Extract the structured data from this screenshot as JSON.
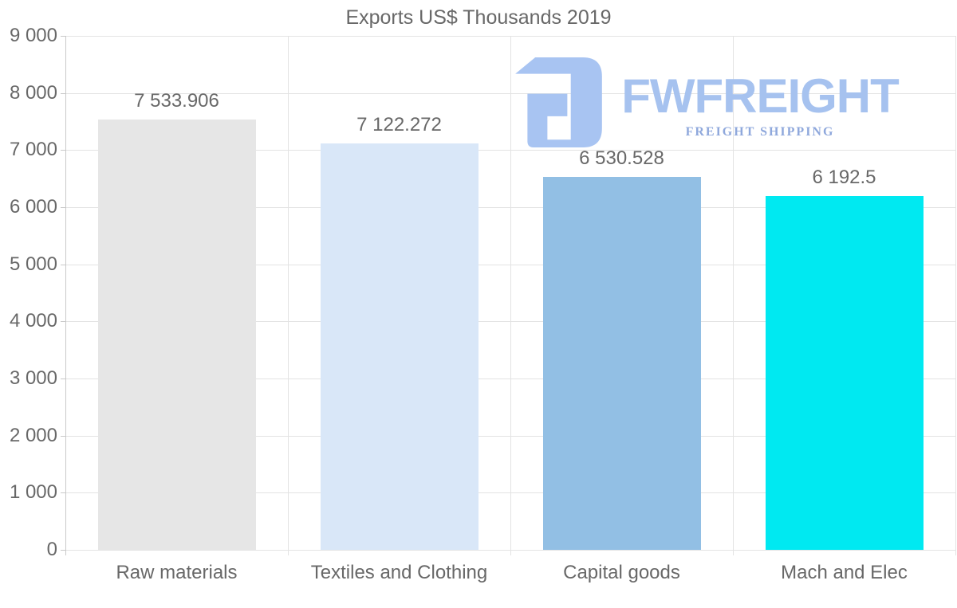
{
  "chart_data": {
    "type": "bar",
    "title": "Exports US$ Thousands 2019",
    "categories": [
      "Raw materials",
      "Textiles and Clothing",
      "Capital goods",
      "Mach and Elec"
    ],
    "values": [
      7533.906,
      7122.272,
      6530.528,
      6192.5
    ],
    "value_labels": [
      "7 533.906",
      "7 122.272",
      "6 530.528",
      "6 192.5"
    ],
    "bar_colors": [
      "#e6e6e6",
      "#d9e7f8",
      "#92bfe4",
      "#00e9f1"
    ],
    "ylim": [
      0,
      9000
    ],
    "y_tick_interval": 1000,
    "y_tick_labels": [
      "0",
      "1 000",
      "2 000",
      "3 000",
      "4 000",
      "5 000",
      "6 000",
      "7 000",
      "8 000",
      "9 000"
    ],
    "grid": true,
    "legend": false,
    "xlabel": "",
    "ylabel": ""
  },
  "watermark": {
    "brand": "FWFREIGHT",
    "tagline": "FREIGHT SHIPPING",
    "brand_color": "#a6c2ef",
    "tagline_color": "#8fa8dc",
    "mark_color": "#a8c4f2"
  },
  "style": {
    "text_color": "#686868",
    "grid_color": "#e3e3e3",
    "axis_color": "#c9c9c9",
    "background": "#ffffff"
  }
}
